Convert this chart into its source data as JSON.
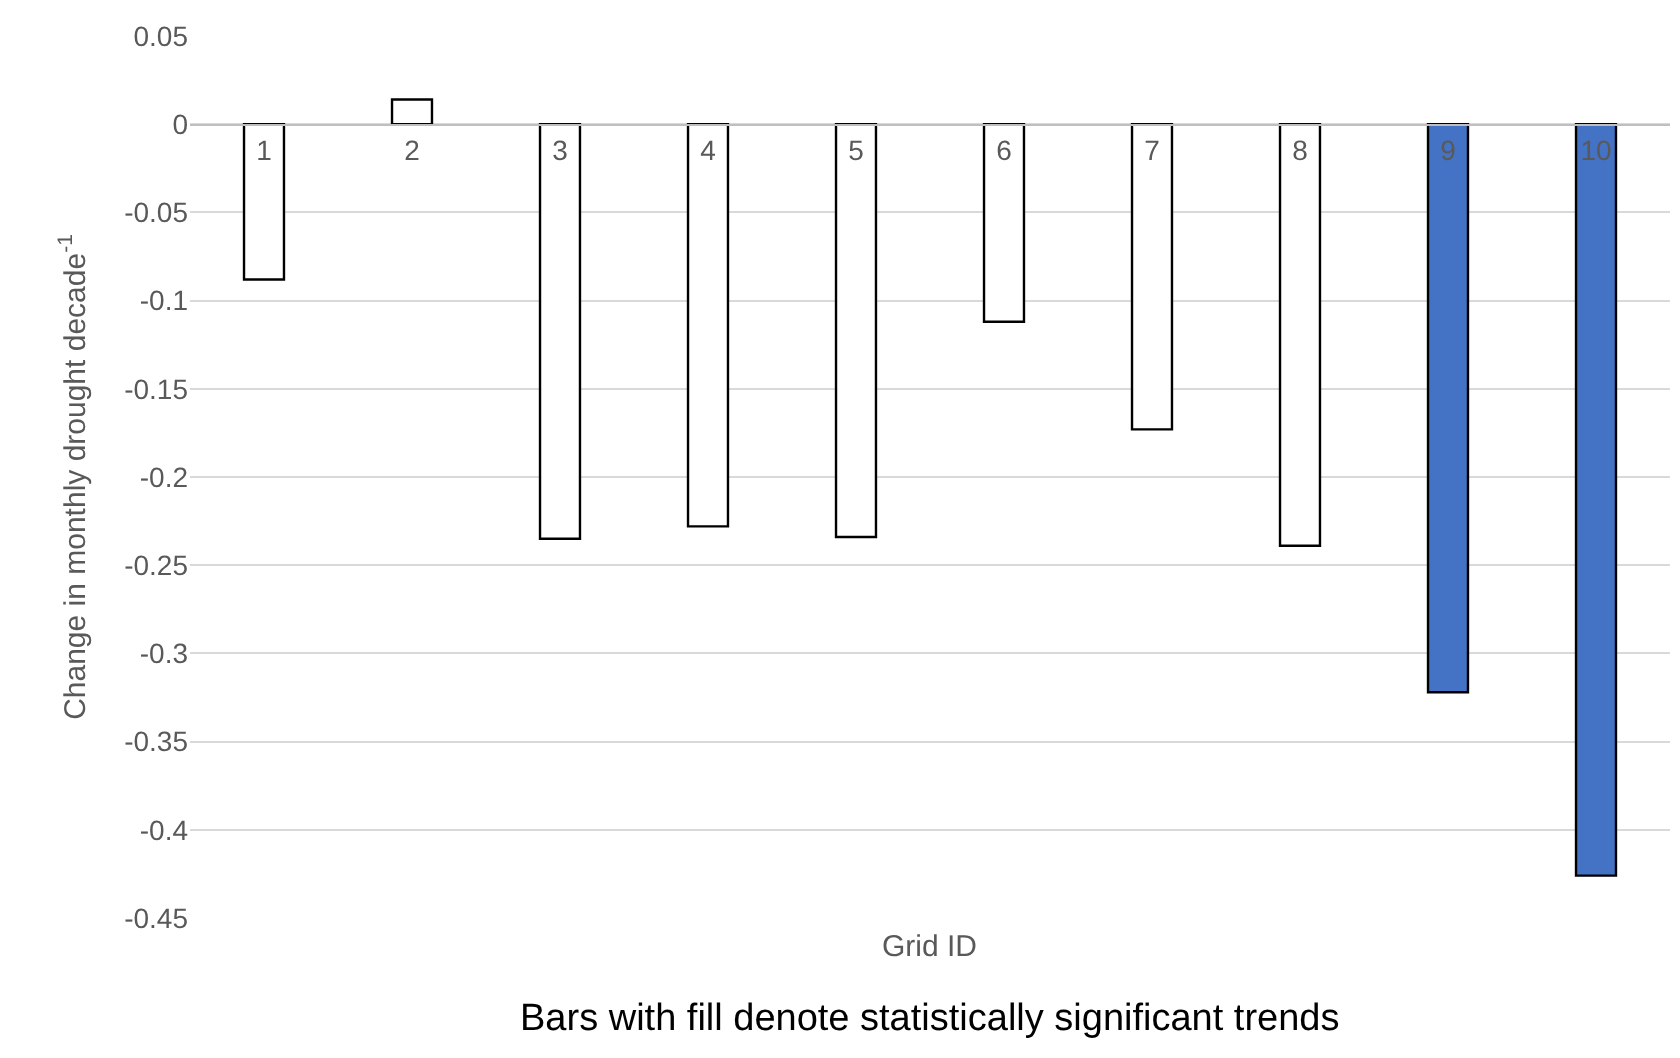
{
  "chart_data": {
    "type": "bar",
    "xlabel": "Grid ID",
    "ylabel": "Change in monthly drought decade$^{-1}$",
    "categories": [
      "1",
      "2",
      "3",
      "4",
      "5",
      "6",
      "7",
      "8",
      "9",
      "10"
    ],
    "values": [
      -0.088,
      0.014,
      -0.235,
      -0.228,
      -0.234,
      -0.112,
      -0.173,
      -0.239,
      -0.322,
      -0.426
    ],
    "colors": [
      "#ffffff",
      "#ffffff",
      "#ffffff",
      "#ffffff",
      "#ffffff",
      "#ffffff",
      "#ffffff",
      "#ffffff",
      "#4472c4",
      "#4472c4"
    ],
    "ylim": [
      -0.45,
      0.05
    ],
    "yticks": [
      0.05,
      0,
      -0.05,
      -0.1,
      -0.15,
      -0.2,
      -0.25,
      -0.3,
      -0.35,
      -0.4,
      -0.45
    ],
    "grid": "y",
    "annotations": [
      "Bars with fill denote statistically significant trends"
    ]
  }
}
